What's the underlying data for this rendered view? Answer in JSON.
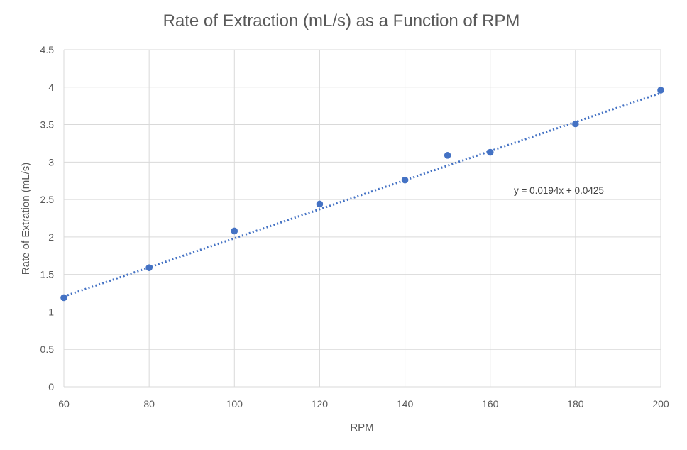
{
  "chart_data": {
    "type": "scatter",
    "title": "Rate of Extraction (mL/s) as a Function of RPM",
    "xlabel": "RPM",
    "ylabel": "Rate of Extration (mL/s)",
    "xlim": [
      60,
      200
    ],
    "ylim": [
      0,
      4.5
    ],
    "x_ticks": [
      60,
      80,
      100,
      120,
      140,
      160,
      180,
      200
    ],
    "y_ticks": [
      0,
      0.5,
      1,
      1.5,
      2,
      2.5,
      3,
      3.5,
      4,
      4.5
    ],
    "x_tick_labels": [
      "60",
      "80",
      "100",
      "120",
      "140",
      "160",
      "180",
      "200"
    ],
    "y_tick_labels": [
      "0",
      "0.5",
      "1",
      "1.5",
      "2",
      "2.5",
      "3",
      "3.5",
      "4",
      "4.5"
    ],
    "grid": true,
    "legend": "none",
    "series": [
      {
        "color": "#4472c4",
        "x": [
          60,
          80,
          100,
          120,
          140,
          150,
          160,
          180,
          200
        ],
        "y": [
          1.19,
          1.59,
          2.08,
          2.44,
          2.76,
          3.09,
          3.13,
          3.51,
          3.96
        ]
      }
    ],
    "trendline": {
      "type": "linear",
      "style": "dotted",
      "color": "#4472c4",
      "slope": 0.0194,
      "intercept": 0.0425,
      "equation": "y = 0.0194x + 0.0425"
    }
  }
}
